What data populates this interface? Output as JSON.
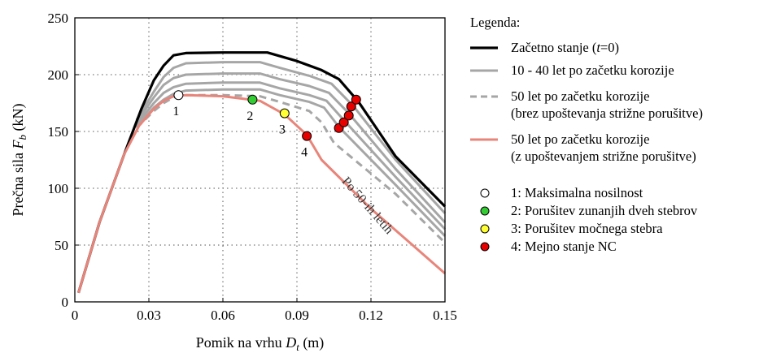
{
  "chart_data": {
    "type": "line",
    "title": "",
    "xlabel": "Pomik na vrhu Dₜ (m)",
    "xlabel_parts": {
      "prefix": "Pomik na vrhu ",
      "symbol": "D",
      "sub": "t",
      "suffix": " (m)"
    },
    "ylabel": "Prečna sila F_b (kN)",
    "ylabel_parts": {
      "prefix": "Prečna sila  ",
      "symbol": "F",
      "sub": "b",
      "suffix": " (kN)"
    },
    "xlim": [
      0,
      0.15
    ],
    "ylim": [
      0,
      250
    ],
    "xticks": [
      0,
      0.03,
      0.06,
      0.09,
      0.12,
      0.15
    ],
    "xtick_labels": [
      "0",
      "0.03",
      "0.06",
      "0.09",
      "0.12",
      "0.15"
    ],
    "yticks": [
      0,
      50,
      100,
      150,
      200,
      250
    ],
    "ytick_labels": [
      "0",
      "50",
      "100",
      "150",
      "200",
      "250"
    ],
    "grid": true,
    "legend_title": "Legenda:",
    "legend_position": "right",
    "series": [
      {
        "name": "Začetno stanje (t=0)",
        "legend_parts": [
          "Začetno stanje (",
          "t",
          "=0)"
        ],
        "color": "#000000",
        "style": "solid",
        "x": [
          0.0015,
          0.01,
          0.02,
          0.027,
          0.032,
          0.036,
          0.04,
          0.045,
          0.06,
          0.07,
          0.078,
          0.09,
          0.1,
          0.107,
          0.115,
          0.13,
          0.15
        ],
        "y": [
          8,
          70,
          130,
          170,
          195,
          208,
          217,
          219,
          219.5,
          219.5,
          219.5,
          212,
          204,
          196,
          176,
          128,
          84
        ]
      },
      {
        "name": "10 - 40 let po začetku korozije",
        "legend_parts": [
          "10 - 40 let po začetku korozije"
        ],
        "color": "#a6a6a6",
        "style": "solid",
        "x": [
          0.025,
          0.032,
          0.036,
          0.04,
          0.045,
          0.06,
          0.075,
          0.083,
          0.095,
          0.104,
          0.113,
          0.13,
          0.15
        ],
        "y": [
          160,
          185,
          198,
          206,
          210,
          211,
          211,
          206,
          199,
          192,
          172,
          125,
          78
        ]
      },
      {
        "name": "10 - 40 let (2)",
        "color": "#a6a6a6",
        "style": "solid",
        "x": [
          0.025,
          0.032,
          0.036,
          0.04,
          0.045,
          0.06,
          0.075,
          0.083,
          0.095,
          0.103,
          0.111,
          0.13,
          0.15
        ],
        "y": [
          158,
          180,
          191,
          197,
          200,
          201,
          201,
          196,
          190,
          184,
          166,
          117,
          70
        ]
      },
      {
        "name": "10 - 40 let (3)",
        "color": "#a6a6a6",
        "style": "solid",
        "x": [
          0.025,
          0.032,
          0.036,
          0.04,
          0.045,
          0.06,
          0.075,
          0.083,
          0.095,
          0.102,
          0.109,
          0.13,
          0.15
        ],
        "y": [
          156,
          175,
          184,
          189,
          192,
          193,
          193,
          188,
          182,
          177,
          160,
          110,
          64
        ]
      },
      {
        "name": "10 - 40 let (4)",
        "color": "#a6a6a6",
        "style": "solid",
        "x": [
          0.025,
          0.032,
          0.036,
          0.04,
          0.045,
          0.06,
          0.075,
          0.083,
          0.095,
          0.101,
          0.107,
          0.13,
          0.15
        ],
        "y": [
          154,
          171,
          178,
          183,
          186,
          187,
          187,
          182,
          176,
          171,
          154,
          103,
          58
        ]
      },
      {
        "name": "50 let po začetku korozije (brez upoštevanja strižne porušitve)",
        "legend_parts": [
          "50 let po začetku korozije",
          "(brez upoštevanja strižne porušitve)"
        ],
        "color": "#a6a6a6",
        "style": "dashed",
        "x": [
          0.025,
          0.032,
          0.036,
          0.04,
          0.045,
          0.06,
          0.075,
          0.083,
          0.095,
          0.1,
          0.105,
          0.13,
          0.15
        ],
        "y": [
          153,
          168,
          175,
          180,
          182,
          182,
          181,
          176,
          168,
          158,
          140,
          95,
          52
        ]
      },
      {
        "name": "50 let po začetku korozije (z upoštevanjem strižne porušitve)",
        "legend_parts": [
          "50 let po začetku korozije",
          "(z upoštevanjem strižne porušitve)"
        ],
        "color": "#e8857a",
        "style": "solid",
        "x": [
          0.0015,
          0.01,
          0.02,
          0.026,
          0.032,
          0.036,
          0.04,
          0.045,
          0.06,
          0.075,
          0.085,
          0.094,
          0.1,
          0.12,
          0.15
        ],
        "y": [
          8,
          70,
          130,
          155,
          170,
          177,
          181,
          182,
          181,
          177,
          165,
          147,
          125,
          82,
          25
        ]
      }
    ],
    "markers": [
      {
        "label": "1",
        "x": 0.042,
        "y": 182,
        "color": "#ffffff",
        "legend": "1: Maksimalna nosilnost"
      },
      {
        "label": "2",
        "x": 0.072,
        "y": 178,
        "color": "#33cc33",
        "legend": "2: Porušitev zunanjih dveh stebrov"
      },
      {
        "label": "3",
        "x": 0.085,
        "y": 166,
        "color": "#ffff33",
        "legend": "3: Porušitev močnega stebra"
      },
      {
        "label": "4",
        "x": 0.094,
        "y": 146,
        "color": "#e60000",
        "legend": "4: Mejno stanje NC"
      },
      {
        "label": "",
        "x": 0.107,
        "y": 153,
        "color": "#e60000"
      },
      {
        "label": "",
        "x": 0.109,
        "y": 158,
        "color": "#e60000"
      },
      {
        "label": "",
        "x": 0.111,
        "y": 164,
        "color": "#e60000"
      },
      {
        "label": "",
        "x": 0.112,
        "y": 172,
        "color": "#e60000"
      },
      {
        "label": "",
        "x": 0.114,
        "y": 178,
        "color": "#e60000"
      }
    ],
    "annotations": [
      {
        "text": "Po 50-ih letih"
      }
    ]
  }
}
